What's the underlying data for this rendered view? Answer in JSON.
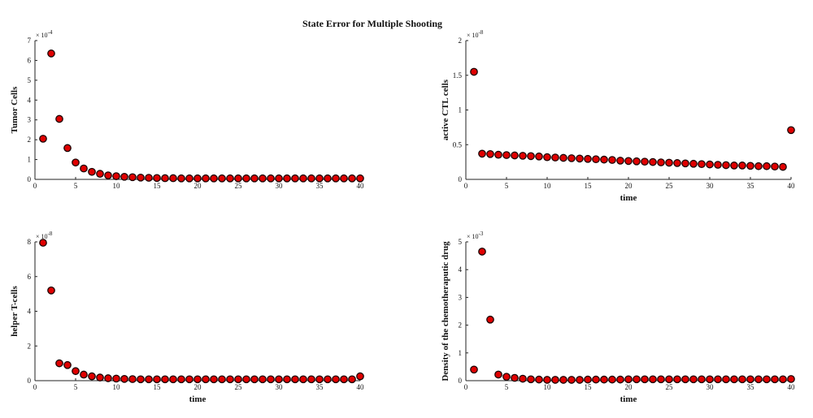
{
  "figure_title": "State Error for Multiple Shooting",
  "marker_fill": "#e00000",
  "marker_edge": "#1a0000",
  "chart_data": [
    {
      "type": "scatter",
      "title": "",
      "ylabel": "Tumor Cells",
      "xlabel": "",
      "multiplier": "10",
      "multiplier_exp": "-4",
      "xlim": [
        0,
        40
      ],
      "ylim": [
        0,
        7
      ],
      "xticks": [
        0,
        5,
        10,
        15,
        20,
        25,
        30,
        35,
        40
      ],
      "yticks": [
        0,
        1,
        2,
        3,
        4,
        5,
        6,
        7
      ],
      "x": [
        1,
        2,
        3,
        4,
        5,
        6,
        7,
        8,
        9,
        10,
        11,
        12,
        13,
        14,
        15,
        16,
        17,
        18,
        19,
        20,
        21,
        22,
        23,
        24,
        25,
        26,
        27,
        28,
        29,
        30,
        31,
        32,
        33,
        34,
        35,
        36,
        37,
        38,
        39,
        40
      ],
      "y": [
        2.05,
        6.35,
        3.05,
        1.58,
        0.85,
        0.55,
        0.38,
        0.28,
        0.2,
        0.16,
        0.13,
        0.11,
        0.09,
        0.08,
        0.07,
        0.06,
        0.06,
        0.05,
        0.05,
        0.05,
        0.05,
        0.05,
        0.05,
        0.05,
        0.05,
        0.05,
        0.05,
        0.05,
        0.05,
        0.05,
        0.05,
        0.05,
        0.05,
        0.05,
        0.05,
        0.05,
        0.05,
        0.05,
        0.05,
        0.05
      ]
    },
    {
      "type": "scatter",
      "title": "",
      "ylabel": "active CTL cells",
      "xlabel": "time",
      "multiplier": "10",
      "multiplier_exp": "-8",
      "xlim": [
        0,
        40
      ],
      "ylim": [
        0,
        2
      ],
      "xticks": [
        0,
        5,
        10,
        15,
        20,
        25,
        30,
        35,
        40
      ],
      "yticks": [
        0,
        0.5,
        1,
        1.5,
        2
      ],
      "x": [
        1,
        2,
        3,
        4,
        5,
        6,
        7,
        8,
        9,
        10,
        11,
        12,
        13,
        14,
        15,
        16,
        17,
        18,
        19,
        20,
        21,
        22,
        23,
        24,
        25,
        26,
        27,
        28,
        29,
        30,
        31,
        32,
        33,
        34,
        35,
        36,
        37,
        38,
        39,
        40
      ],
      "y": [
        1.55,
        0.37,
        0.365,
        0.355,
        0.35,
        0.345,
        0.34,
        0.335,
        0.33,
        0.32,
        0.315,
        0.31,
        0.305,
        0.3,
        0.295,
        0.29,
        0.285,
        0.28,
        0.27,
        0.265,
        0.26,
        0.255,
        0.25,
        0.245,
        0.24,
        0.235,
        0.23,
        0.225,
        0.22,
        0.215,
        0.21,
        0.205,
        0.2,
        0.2,
        0.195,
        0.19,
        0.19,
        0.185,
        0.18,
        0.71
      ]
    },
    {
      "type": "scatter",
      "title": "",
      "ylabel": "helper T-cells",
      "xlabel": "time",
      "multiplier": "10",
      "multiplier_exp": "-8",
      "xlim": [
        0,
        40
      ],
      "ylim": [
        0,
        8
      ],
      "xticks": [
        0,
        5,
        10,
        15,
        20,
        25,
        30,
        35,
        40
      ],
      "yticks": [
        0,
        2,
        4,
        6,
        8
      ],
      "x": [
        1,
        2,
        3,
        4,
        5,
        6,
        7,
        8,
        9,
        10,
        11,
        12,
        13,
        14,
        15,
        16,
        17,
        18,
        19,
        20,
        21,
        22,
        23,
        24,
        25,
        26,
        27,
        28,
        29,
        30,
        31,
        32,
        33,
        34,
        35,
        36,
        37,
        38,
        39,
        40
      ],
      "y": [
        7.95,
        5.2,
        1.0,
        0.9,
        0.55,
        0.35,
        0.25,
        0.18,
        0.14,
        0.12,
        0.1,
        0.09,
        0.08,
        0.08,
        0.08,
        0.08,
        0.08,
        0.08,
        0.08,
        0.08,
        0.08,
        0.08,
        0.08,
        0.08,
        0.08,
        0.08,
        0.08,
        0.08,
        0.08,
        0.08,
        0.08,
        0.08,
        0.08,
        0.08,
        0.08,
        0.08,
        0.08,
        0.08,
        0.08,
        0.25
      ]
    },
    {
      "type": "scatter",
      "title": "",
      "ylabel": "Density of the chemotheraputic drug",
      "xlabel": "time",
      "multiplier": "10",
      "multiplier_exp": "-3",
      "xlim": [
        0,
        40
      ],
      "ylim": [
        0,
        5
      ],
      "xticks": [
        0,
        5,
        10,
        15,
        20,
        25,
        30,
        35,
        40
      ],
      "yticks": [
        0,
        1,
        2,
        3,
        4,
        5
      ],
      "x": [
        1,
        2,
        3,
        4,
        5,
        6,
        7,
        8,
        9,
        10,
        11,
        12,
        13,
        14,
        15,
        16,
        17,
        18,
        19,
        20,
        21,
        22,
        23,
        24,
        25,
        26,
        27,
        28,
        29,
        30,
        31,
        32,
        33,
        34,
        35,
        36,
        37,
        38,
        39,
        40
      ],
      "y": [
        0.4,
        4.65,
        2.2,
        0.22,
        0.14,
        0.1,
        0.07,
        0.05,
        0.04,
        0.03,
        0.03,
        0.03,
        0.03,
        0.03,
        0.04,
        0.04,
        0.04,
        0.04,
        0.04,
        0.05,
        0.05,
        0.05,
        0.05,
        0.05,
        0.05,
        0.05,
        0.05,
        0.05,
        0.05,
        0.05,
        0.05,
        0.05,
        0.05,
        0.05,
        0.05,
        0.05,
        0.05,
        0.05,
        0.05,
        0.06
      ]
    }
  ]
}
